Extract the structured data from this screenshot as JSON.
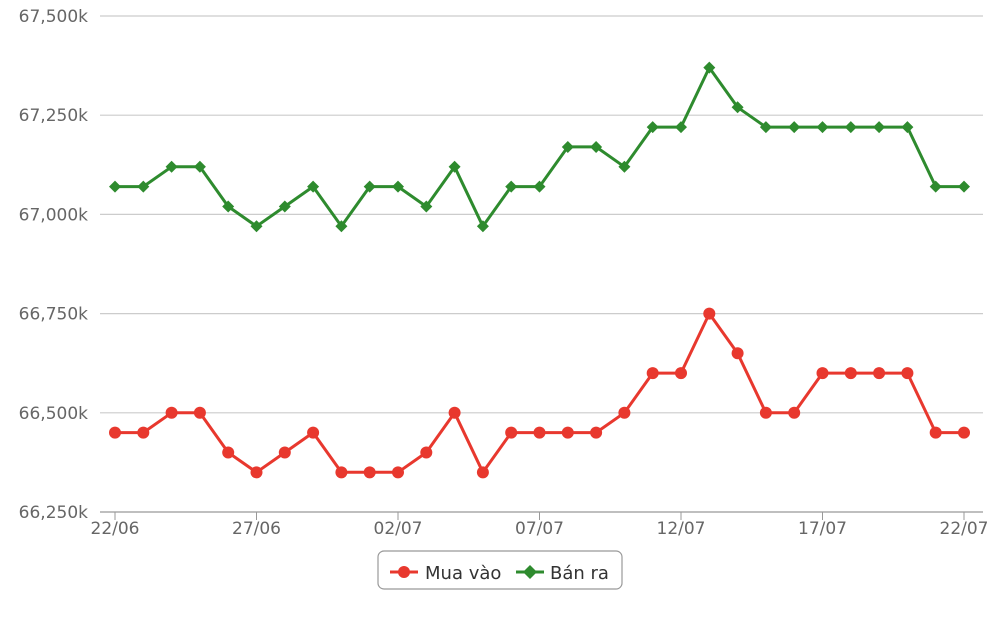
{
  "chart_data": {
    "type": "line",
    "x": [
      "22/06",
      "23/06",
      "24/06",
      "25/06",
      "26/06",
      "27/06",
      "28/06",
      "29/06",
      "30/06",
      "01/07",
      "02/07",
      "03/07",
      "04/07",
      "05/07",
      "06/07",
      "07/07",
      "08/07",
      "09/07",
      "10/07",
      "11/07",
      "12/07",
      "13/07",
      "14/07",
      "15/07",
      "16/07",
      "17/07",
      "18/07",
      "19/07",
      "20/07",
      "21/07",
      "22/07"
    ],
    "x_tick_labels": [
      "22/06",
      "27/06",
      "02/07",
      "07/07",
      "12/07",
      "17/07",
      "22/07"
    ],
    "y_tick_labels": [
      "66,250k",
      "66,500k",
      "66,750k",
      "67,000k",
      "67,250k",
      "67,500k"
    ],
    "y_ticks": [
      66250,
      66500,
      66750,
      67000,
      67250,
      67500
    ],
    "ylim": [
      66250,
      67500
    ],
    "grid": true,
    "legend_position": "bottom-center",
    "series": [
      {
        "name": "Mua vào",
        "color": "#e8382e",
        "marker": "circle",
        "values": [
          66450,
          66450,
          66500,
          66500,
          66400,
          66350,
          66400,
          66450,
          66350,
          66350,
          66350,
          66400,
          66500,
          66350,
          66450,
          66450,
          66450,
          66450,
          66500,
          66600,
          66600,
          66750,
          66650,
          66500,
          66500,
          66600,
          66600,
          66600,
          66600,
          66450,
          66450
        ]
      },
      {
        "name": "Bán ra",
        "color": "#2e8b2e",
        "marker": "diamond",
        "values": [
          67070,
          67070,
          67120,
          67120,
          67020,
          66970,
          67020,
          67070,
          66970,
          67070,
          67070,
          67020,
          67120,
          66970,
          67070,
          67070,
          67170,
          67170,
          67120,
          67220,
          67220,
          67370,
          67270,
          67220,
          67220,
          67220,
          67220,
          67220,
          67220,
          67070,
          67070
        ]
      }
    ]
  }
}
